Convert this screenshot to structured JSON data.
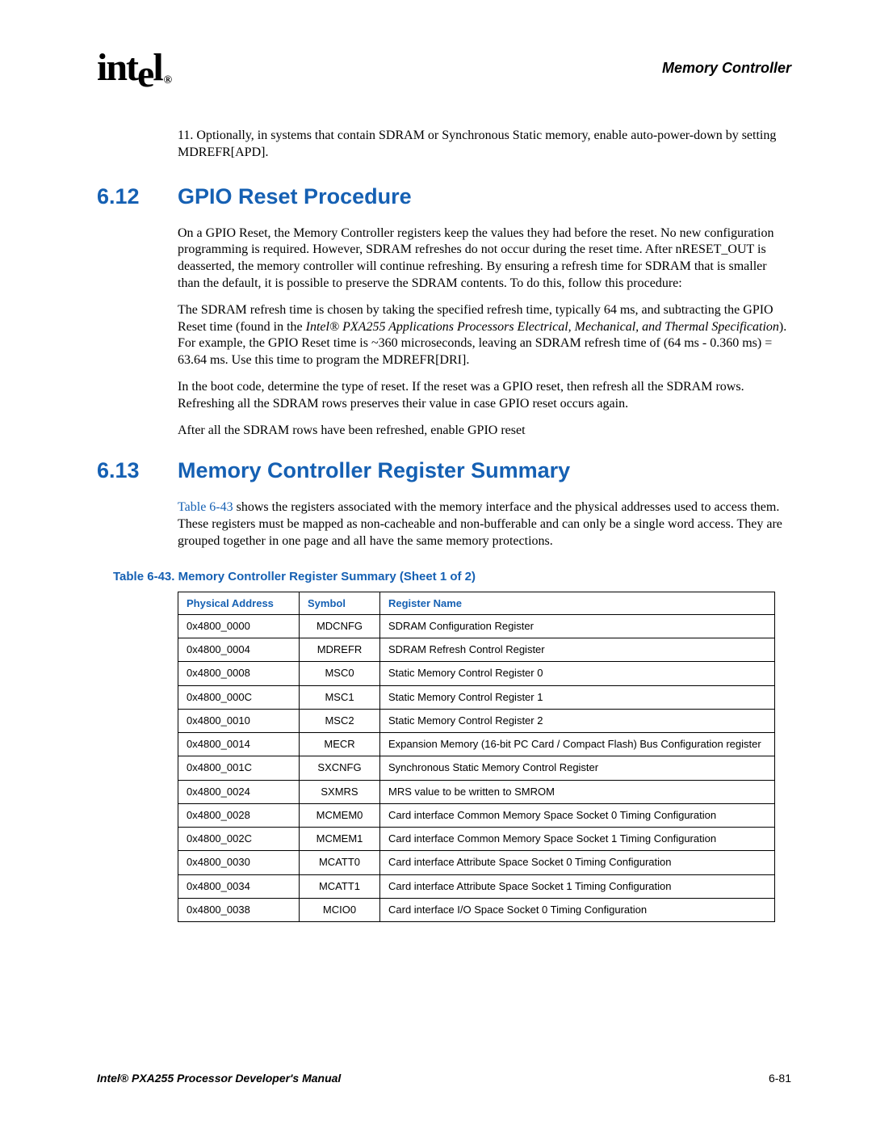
{
  "header": {
    "logo_text": "intel",
    "section_label": "Memory Controller"
  },
  "intro_note": {
    "number": "11.",
    "text": "Optionally, in systems that contain SDRAM or Synchronous Static memory, enable auto-power-down by setting MDREFR[APD]."
  },
  "section_6_12": {
    "number": "6.12",
    "title": "GPIO Reset Procedure",
    "p1": "On a GPIO Reset, the Memory Controller registers keep the values they had before the reset. No new configuration programming is required. However, SDRAM refreshes do not occur during the reset time. After nRESET_OUT is deasserted, the memory controller will continue refreshing. By ensuring a refresh time for SDRAM that is smaller than the default, it is possible to preserve the SDRAM contents. To do this, follow this procedure:",
    "p2_a": "The SDRAM refresh time is chosen by taking the specified refresh time, typically 64 ms, and subtracting the GPIO Reset time (found in the ",
    "p2_i": "Intel® PXA255 Applications Processors Electrical, Mechanical, and Thermal Specification",
    "p2_b": "). For example, the GPIO Reset time is ~360 microseconds, leaving an SDRAM refresh time of (64 ms - 0.360 ms) = 63.64 ms. Use this time to program the MDREFR[DRI].",
    "p3": "In the boot code, determine the type of reset. If the reset was a GPIO reset, then refresh all the SDRAM rows. Refreshing all the SDRAM rows preserves their value in case GPIO reset occurs again.",
    "p4": "After all the SDRAM rows have been refreshed, enable GPIO reset"
  },
  "section_6_13": {
    "number": "6.13",
    "title": "Memory Controller Register Summary",
    "p1_a": "",
    "p1_link": "Table 6-43",
    "p1_b": " shows the registers associated with the memory interface and the physical addresses used to access them. These registers must be mapped as non-cacheable and non-bufferable and can only be a single word access. They are grouped together in one page and all have the same memory protections."
  },
  "table": {
    "caption": "Table 6-43. Memory Controller Register Summary (Sheet 1 of 2)",
    "columns": [
      "Physical Address",
      "Symbol",
      "Register Name"
    ],
    "rows": [
      [
        "0x4800_0000",
        "MDCNFG",
        "SDRAM Configuration Register"
      ],
      [
        "0x4800_0004",
        "MDREFR",
        "SDRAM Refresh Control Register"
      ],
      [
        "0x4800_0008",
        "MSC0",
        "Static Memory Control Register 0"
      ],
      [
        "0x4800_000C",
        "MSC1",
        "Static Memory Control Register 1"
      ],
      [
        "0x4800_0010",
        "MSC2",
        "Static Memory Control Register 2"
      ],
      [
        "0x4800_0014",
        "MECR",
        "Expansion Memory (16-bit PC Card / Compact Flash) Bus Configuration register"
      ],
      [
        "0x4800_001C",
        "SXCNFG",
        "Synchronous Static Memory Control Register"
      ],
      [
        "0x4800_0024",
        "SXMRS",
        "MRS value to be written to SMROM"
      ],
      [
        "0x4800_0028",
        "MCMEM0",
        "Card interface Common Memory Space Socket 0 Timing Configuration"
      ],
      [
        "0x4800_002C",
        "MCMEM1",
        "Card interface Common Memory Space Socket 1 Timing Configuration"
      ],
      [
        "0x4800_0030",
        "MCATT0",
        "Card interface Attribute Space Socket 0 Timing Configuration"
      ],
      [
        "0x4800_0034",
        "MCATT1",
        "Card interface Attribute Space Socket 1 Timing Configuration"
      ],
      [
        "0x4800_0038",
        "MCIO0",
        "Card interface I/O Space Socket 0 Timing Configuration"
      ]
    ]
  },
  "footer": {
    "title": "Intel® PXA255 Processor Developer's Manual",
    "page": "6-81"
  },
  "colors": {
    "heading_blue": "#1560b3",
    "text": "#000000",
    "background": "#ffffff"
  }
}
